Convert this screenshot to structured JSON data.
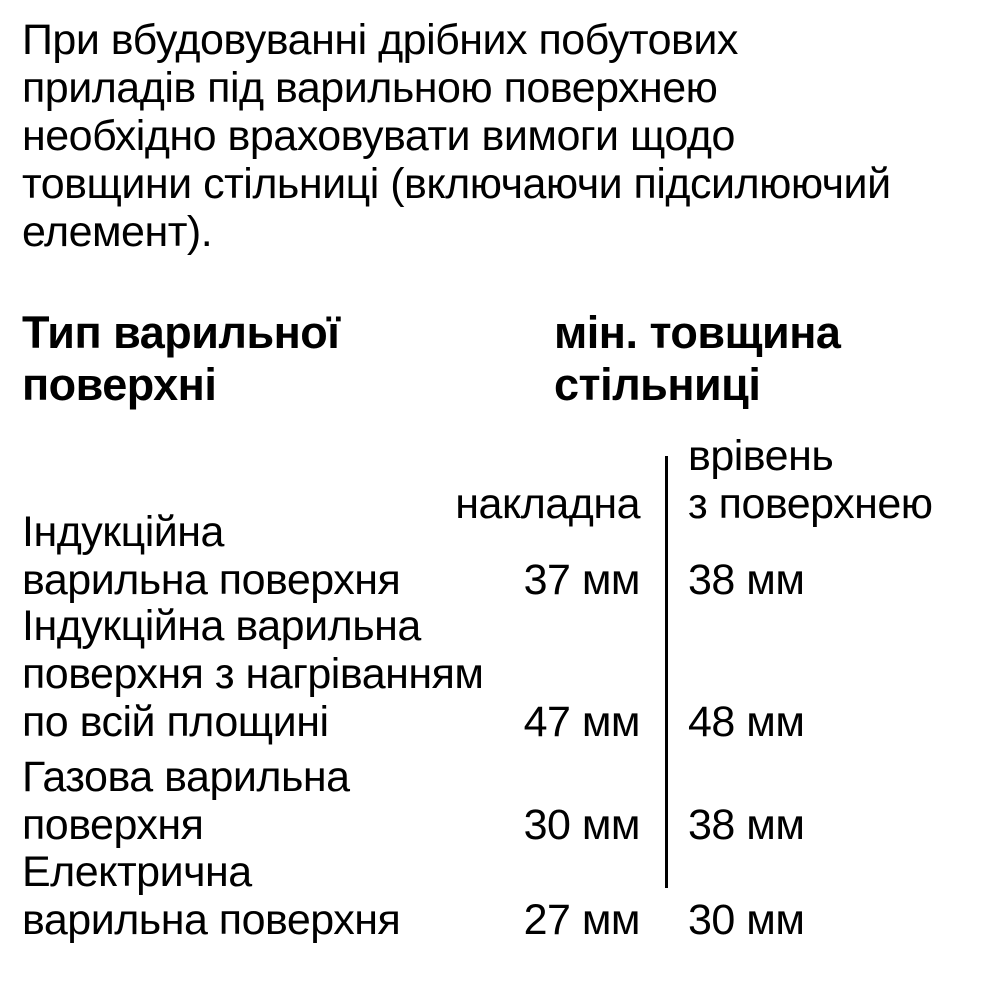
{
  "intro_paragraph": "При вбудовуванні дрібних побутових\nприладів під варильною поверхнею\nнеобхідно враховувати вимоги щодо\nтовщини стільниці (включаючи підсилюючий\nелемент).",
  "table": {
    "col1_header": "Тип варильної\nповерхні",
    "col2_header": "мін. товщина\nстільниці",
    "sub_headers": {
      "overlay": "накладна",
      "flush": "врівень\nз поверхнею"
    },
    "rows": [
      {
        "label": "Індукційна\nварильна поверхня",
        "overlay": "37 мм",
        "flush": "38 мм"
      },
      {
        "label": "Індукційна варильна\nповерхня з нагріванням\nпо всій площині",
        "overlay": "47 мм",
        "flush": "48 мм"
      },
      {
        "label": "Газова варильна\nповерхня",
        "overlay": "30 мм",
        "flush": "38 мм"
      },
      {
        "label": "Електрична\nварильна поверхня",
        "overlay": "27 мм",
        "flush": "30 мм"
      }
    ]
  },
  "colors": {
    "background": "#ffffff",
    "text": "#000000",
    "divider": "#000000"
  }
}
